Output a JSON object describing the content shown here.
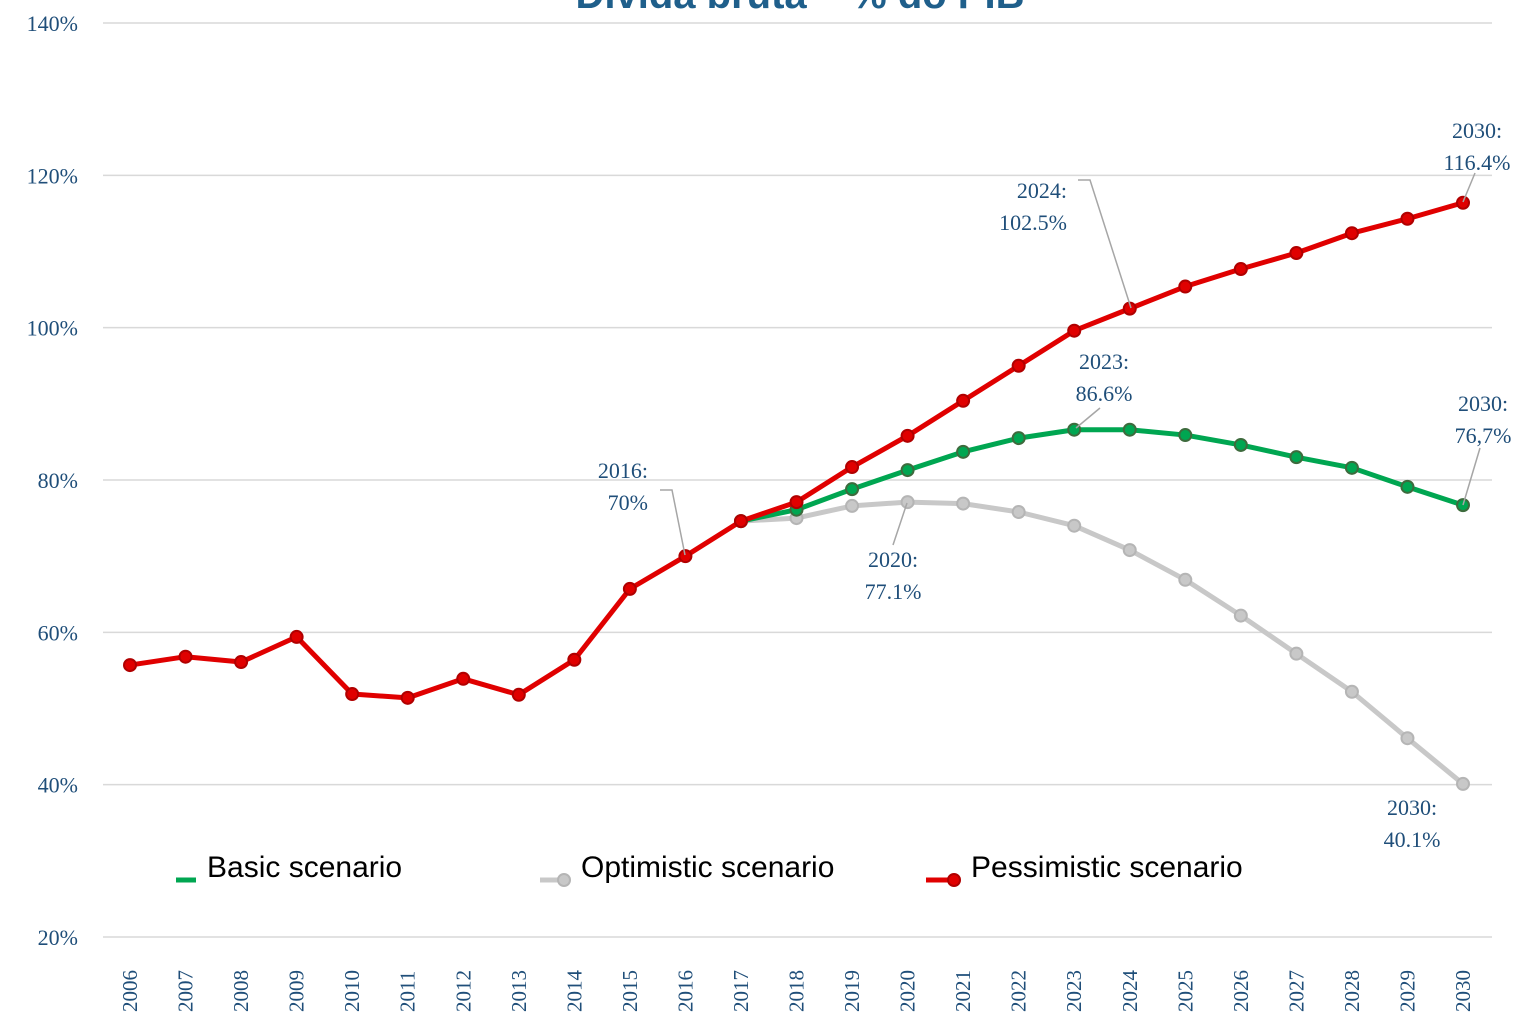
{
  "chart_data": {
    "type": "line",
    "title": "Dívida bruta – % do PIB",
    "categories": [
      "2006",
      "2007",
      "2008",
      "2009",
      "2010",
      "2011",
      "2012",
      "2013",
      "2014",
      "2015",
      "2016",
      "2017",
      "2018",
      "2019",
      "2020",
      "2021",
      "2022",
      "2023",
      "2024",
      "2025",
      "2026",
      "2027",
      "2028",
      "2029",
      "2030"
    ],
    "series": [
      {
        "name": "Optimistic scenario",
        "color": "#c8c8c8",
        "values": [
          null,
          null,
          null,
          null,
          null,
          null,
          null,
          null,
          null,
          null,
          null,
          74.6,
          75.0,
          76.6,
          77.1,
          76.9,
          75.8,
          74.0,
          70.8,
          66.9,
          62.2,
          57.2,
          52.2,
          46.1,
          40.1
        ]
      },
      {
        "name": "Basic scenario",
        "color": "#00a651",
        "values": [
          null,
          null,
          null,
          null,
          null,
          null,
          null,
          null,
          null,
          null,
          null,
          74.6,
          76.1,
          78.8,
          81.3,
          83.7,
          85.5,
          86.6,
          86.6,
          85.9,
          84.6,
          83.0,
          81.6,
          79.1,
          76.7
        ]
      },
      {
        "name": "Pessimistic scenario",
        "color": "#e00000",
        "values": [
          55.7,
          56.8,
          56.1,
          59.4,
          51.9,
          51.4,
          53.9,
          51.8,
          56.4,
          65.7,
          70,
          74.6,
          77.1,
          81.7,
          85.8,
          90.4,
          95.0,
          99.6,
          102.5,
          105.4,
          107.7,
          109.8,
          112.4,
          114.3,
          116.4
        ]
      }
    ],
    "ylim": [
      20,
      140
    ],
    "yticks": [
      {
        "value": 20,
        "label": "20%"
      },
      {
        "value": 40,
        "label": "40%"
      },
      {
        "value": 60,
        "label": "60%"
      },
      {
        "value": 80,
        "label": "80%"
      },
      {
        "value": 100,
        "label": "100%"
      },
      {
        "value": 120,
        "label": "120%"
      },
      {
        "value": 140,
        "label": "140%"
      }
    ],
    "grid": true,
    "legend": "bottom",
    "annotations": [
      {
        "text": [
          "2016:",
          "70%"
        ]
      },
      {
        "text": [
          "2020:",
          "77.1%"
        ]
      },
      {
        "text": [
          "2023:",
          "86.6%"
        ]
      },
      {
        "text": [
          "2024:",
          "102.5%"
        ]
      },
      {
        "text": [
          "2030:",
          "116.4%"
        ]
      },
      {
        "text": [
          "2030:",
          "76,7%"
        ]
      },
      {
        "text": [
          "2030:",
          "40.1%"
        ]
      }
    ]
  }
}
